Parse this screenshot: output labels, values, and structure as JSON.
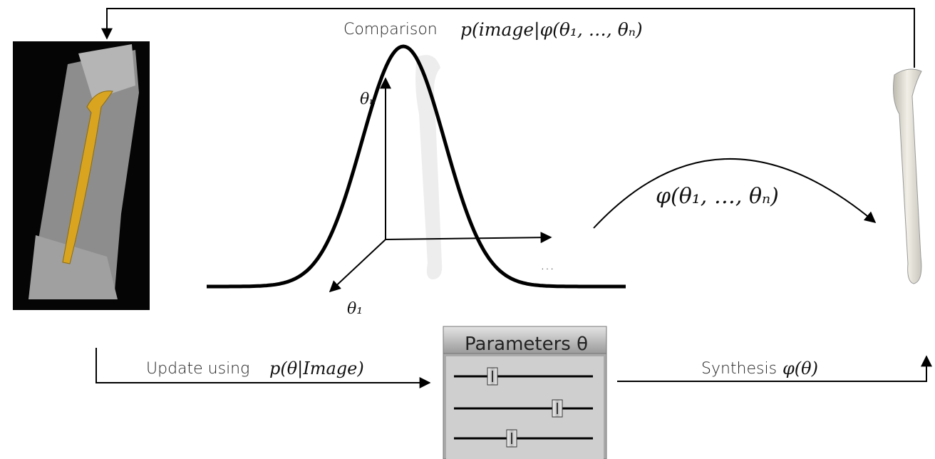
{
  "top_label": {
    "text": "Comparison",
    "formula": "p(image|φ(θ₁, …, θₙ)"
  },
  "axes": {
    "up": "θₙ",
    "down_left": "θ₁",
    "right": "…"
  },
  "mapping_label": "φ(θ₁, …, θₙ)",
  "bottom_left_label": {
    "text": "Update using",
    "formula": "p(θ|Image)"
  },
  "panel": {
    "title": "Parameters θ"
  },
  "bottom_right_label": {
    "text": "Synthesis",
    "formula": "φ(θ)"
  }
}
